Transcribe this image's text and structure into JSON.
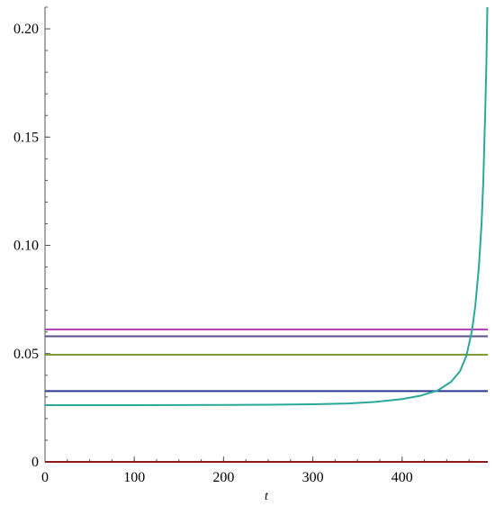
{
  "chart_data": {
    "type": "line",
    "title": "",
    "xlabel": "t",
    "ylabel": "",
    "xlim": [
      0,
      496
    ],
    "ylim": [
      0,
      0.21
    ],
    "grid": false,
    "legend": "none",
    "x_ticks": [
      {
        "value": 0,
        "label": "0"
      },
      {
        "value": 100,
        "label": "100"
      },
      {
        "value": 200,
        "label": "200"
      },
      {
        "value": 300,
        "label": "300"
      },
      {
        "value": 400,
        "label": "400"
      }
    ],
    "y_ticks": [
      {
        "value": 0,
        "label": "0"
      },
      {
        "value": 0.05,
        "label": "0.05"
      },
      {
        "value": 0.1,
        "label": "0.10"
      },
      {
        "value": 0.15,
        "label": "0.15"
      },
      {
        "value": 0.2,
        "label": "0.20"
      }
    ],
    "series": [
      {
        "color": "#b03cb0",
        "x": [
          0,
          496
        ],
        "y": [
          0.0612,
          0.0612
        ]
      },
      {
        "color": "#5a4f8c",
        "x": [
          0,
          496
        ],
        "y": [
          0.058,
          0.058
        ]
      },
      {
        "color": "#7aa032",
        "x": [
          0,
          496
        ],
        "y": [
          0.0495,
          0.0495
        ]
      },
      {
        "color": "#2a3590",
        "x": [
          0,
          496
        ],
        "y": [
          0.0327,
          0.0327
        ]
      },
      {
        "color": "#8b1a1a",
        "x": [
          0,
          496
        ],
        "y": [
          0.0,
          0.0
        ]
      },
      {
        "color": "#2aa89a",
        "x": [
          0,
          100,
          200,
          250,
          300,
          340,
          370,
          400,
          420,
          440,
          455,
          465,
          472,
          478,
          482,
          486,
          489,
          491,
          493,
          494.5,
          495.5
        ],
        "y": [
          0.0262,
          0.0262,
          0.0263,
          0.0264,
          0.0266,
          0.027,
          0.0277,
          0.029,
          0.0305,
          0.033,
          0.037,
          0.042,
          0.049,
          0.06,
          0.072,
          0.09,
          0.11,
          0.13,
          0.16,
          0.185,
          0.21
        ]
      }
    ]
  }
}
